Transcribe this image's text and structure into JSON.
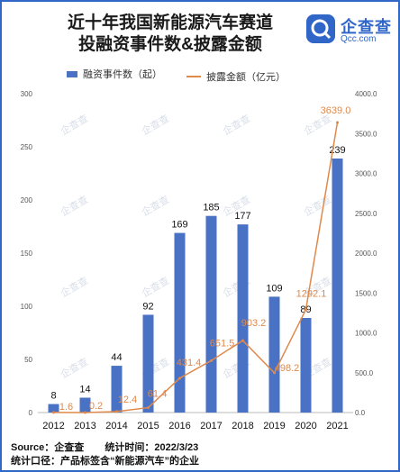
{
  "title": {
    "line1": "近十年我国新能源汽车赛道",
    "line2": "投融资事件数&披露金额"
  },
  "brand": {
    "name": "企查查",
    "url": "Qcc.com",
    "color": "#2f66c7"
  },
  "footer": {
    "source": "Source：企查查",
    "time": "统计时间：2022/3/23",
    "scope": "统计口径：产品标签含“新能源汽车”的企业"
  },
  "colors": {
    "bar": "#4a72c4",
    "line": "#e0894a",
    "frame": "#2f66c7"
  },
  "chart_data": {
    "type": "bar",
    "categories": [
      "2012",
      "2013",
      "2014",
      "2015",
      "2016",
      "2017",
      "2018",
      "2019",
      "2020",
      "2021"
    ],
    "series": [
      {
        "name": "融资事件数（起）",
        "type": "bar",
        "axis": "left",
        "values": [
          8,
          14,
          44,
          92,
          169,
          185,
          177,
          109,
          89,
          239
        ]
      },
      {
        "name": "披露金额（亿元）",
        "type": "line",
        "axis": "right",
        "values": [
          1.6,
          0.2,
          12.4,
          61.4,
          431.4,
          651.5,
          903.2,
          498.2,
          1292.1,
          3639.0
        ]
      }
    ],
    "data_labels_bar": [
      "8",
      "14",
      "44",
      "92",
      "169",
      "185",
      "177",
      "109",
      "89",
      "239"
    ],
    "data_labels_line": [
      "1.6",
      "0.2",
      "12.4",
      "61.4",
      "431.4",
      "651.5",
      "903.2",
      "498.2",
      "1292.1",
      "3639.0"
    ],
    "y_left": {
      "ylim": [
        0,
        300
      ],
      "ticks": [
        "0",
        "50",
        "100",
        "150",
        "200",
        "250",
        "300"
      ]
    },
    "y_right": {
      "ylim": [
        0,
        4000
      ],
      "ticks": [
        "0.0",
        "500.0",
        "1000.0",
        "1500.0",
        "2000.0",
        "2500.0",
        "3000.0",
        "3500.0",
        "4000.0"
      ]
    },
    "legend_position": "top"
  }
}
